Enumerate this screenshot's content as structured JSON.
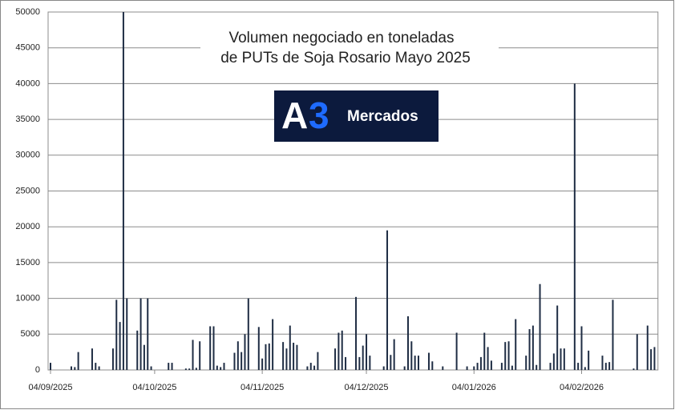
{
  "chart_data": {
    "type": "bar",
    "title": [
      "Volumen negociado en toneladas",
      "de PUTs de Soja Rosario Mayo 2025"
    ],
    "logo": {
      "letter": "A",
      "digit": "3",
      "text": "Mercados"
    },
    "color": "#1f2d44",
    "grid": true,
    "xlim": [
      "04/09/2025",
      "26/02/2026"
    ],
    "xticks": [
      "04/09/2025",
      "04/10/2025",
      "04/11/2025",
      "04/12/2025",
      "04/01/2026",
      "04/02/2026"
    ],
    "ylim": [
      0,
      50000
    ],
    "yticks": [
      0,
      5000,
      10000,
      15000,
      20000,
      25000,
      30000,
      35000,
      40000,
      45000,
      50000
    ],
    "x": [
      "04/09/2025",
      "10/09/2025",
      "11/09/2025",
      "12/09/2025",
      "16/09/2025",
      "17/09/2025",
      "18/09/2025",
      "22/09/2025",
      "23/09/2025",
      "24/09/2025",
      "25/09/2025",
      "26/09/2025",
      "29/09/2025",
      "30/09/2025",
      "01/10/2025",
      "02/10/2025",
      "03/10/2025",
      "08/10/2025",
      "09/10/2025",
      "13/10/2025",
      "14/10/2025",
      "15/10/2025",
      "16/10/2025",
      "17/10/2025",
      "20/10/2025",
      "21/10/2025",
      "22/10/2025",
      "23/10/2025",
      "24/10/2025",
      "27/10/2025",
      "28/10/2025",
      "29/10/2025",
      "30/10/2025",
      "31/10/2025",
      "03/11/2025",
      "04/11/2025",
      "05/11/2025",
      "06/11/2025",
      "07/11/2025",
      "10/11/2025",
      "11/11/2025",
      "12/11/2025",
      "13/11/2025",
      "14/11/2025",
      "17/11/2025",
      "18/11/2025",
      "19/11/2025",
      "20/11/2025",
      "25/11/2025",
      "26/11/2025",
      "27/11/2025",
      "28/11/2025",
      "01/12/2025",
      "02/12/2025",
      "03/12/2025",
      "04/12/2025",
      "05/12/2025",
      "09/12/2025",
      "10/12/2025",
      "11/12/2025",
      "12/12/2025",
      "15/12/2025",
      "16/12/2025",
      "17/12/2025",
      "18/12/2025",
      "19/12/2025",
      "22/12/2025",
      "23/12/2025",
      "26/12/2025",
      "30/12/2025",
      "02/01/2026",
      "04/01/2026",
      "05/01/2026",
      "06/01/2026",
      "07/01/2026",
      "08/01/2026",
      "09/01/2026",
      "12/01/2026",
      "13/01/2026",
      "14/01/2026",
      "15/01/2026",
      "16/01/2026",
      "19/01/2026",
      "20/01/2026",
      "21/01/2026",
      "22/01/2026",
      "23/01/2026",
      "26/01/2026",
      "27/01/2026",
      "28/01/2026",
      "29/01/2026",
      "30/01/2026",
      "02/02/2026",
      "03/02/2026",
      "04/02/2026",
      "05/02/2026",
      "06/02/2026",
      "10/02/2026",
      "11/02/2026",
      "12/02/2026",
      "13/02/2026",
      "19/02/2026",
      "20/02/2026",
      "23/02/2026",
      "24/02/2026",
      "25/02/2026"
    ],
    "values": [
      1000,
      500,
      400,
      2500,
      3000,
      1000,
      500,
      3000,
      9800,
      6700,
      50000,
      10000,
      5500,
      10000,
      3500,
      10000,
      500,
      1000,
      1000,
      200,
      200,
      4200,
      300,
      4000,
      6100,
      6100,
      600,
      400,
      1000,
      2400,
      4000,
      2500,
      5000,
      10000,
      6000,
      1600,
      3600,
      3700,
      7100,
      3900,
      3000,
      6200,
      3800,
      3500,
      500,
      1000,
      600,
      2500,
      3000,
      5200,
      5500,
      1800,
      10200,
      1800,
      3400,
      5000,
      2000,
      500,
      19500,
      2100,
      4300,
      500,
      7500,
      4000,
      2000,
      2000,
      2400,
      1200,
      500,
      5200,
      500,
      500,
      1000,
      1800,
      5200,
      3200,
      1300,
      1000,
      3900,
      4000,
      600,
      7100,
      2000,
      5700,
      6200,
      700,
      12000,
      1000,
      2300,
      9000,
      3000,
      3000,
      40000,
      1000,
      6100,
      400,
      2700,
      2000,
      1000,
      1100,
      9800,
      200,
      5000,
      6200,
      2900,
      3200
    ]
  }
}
